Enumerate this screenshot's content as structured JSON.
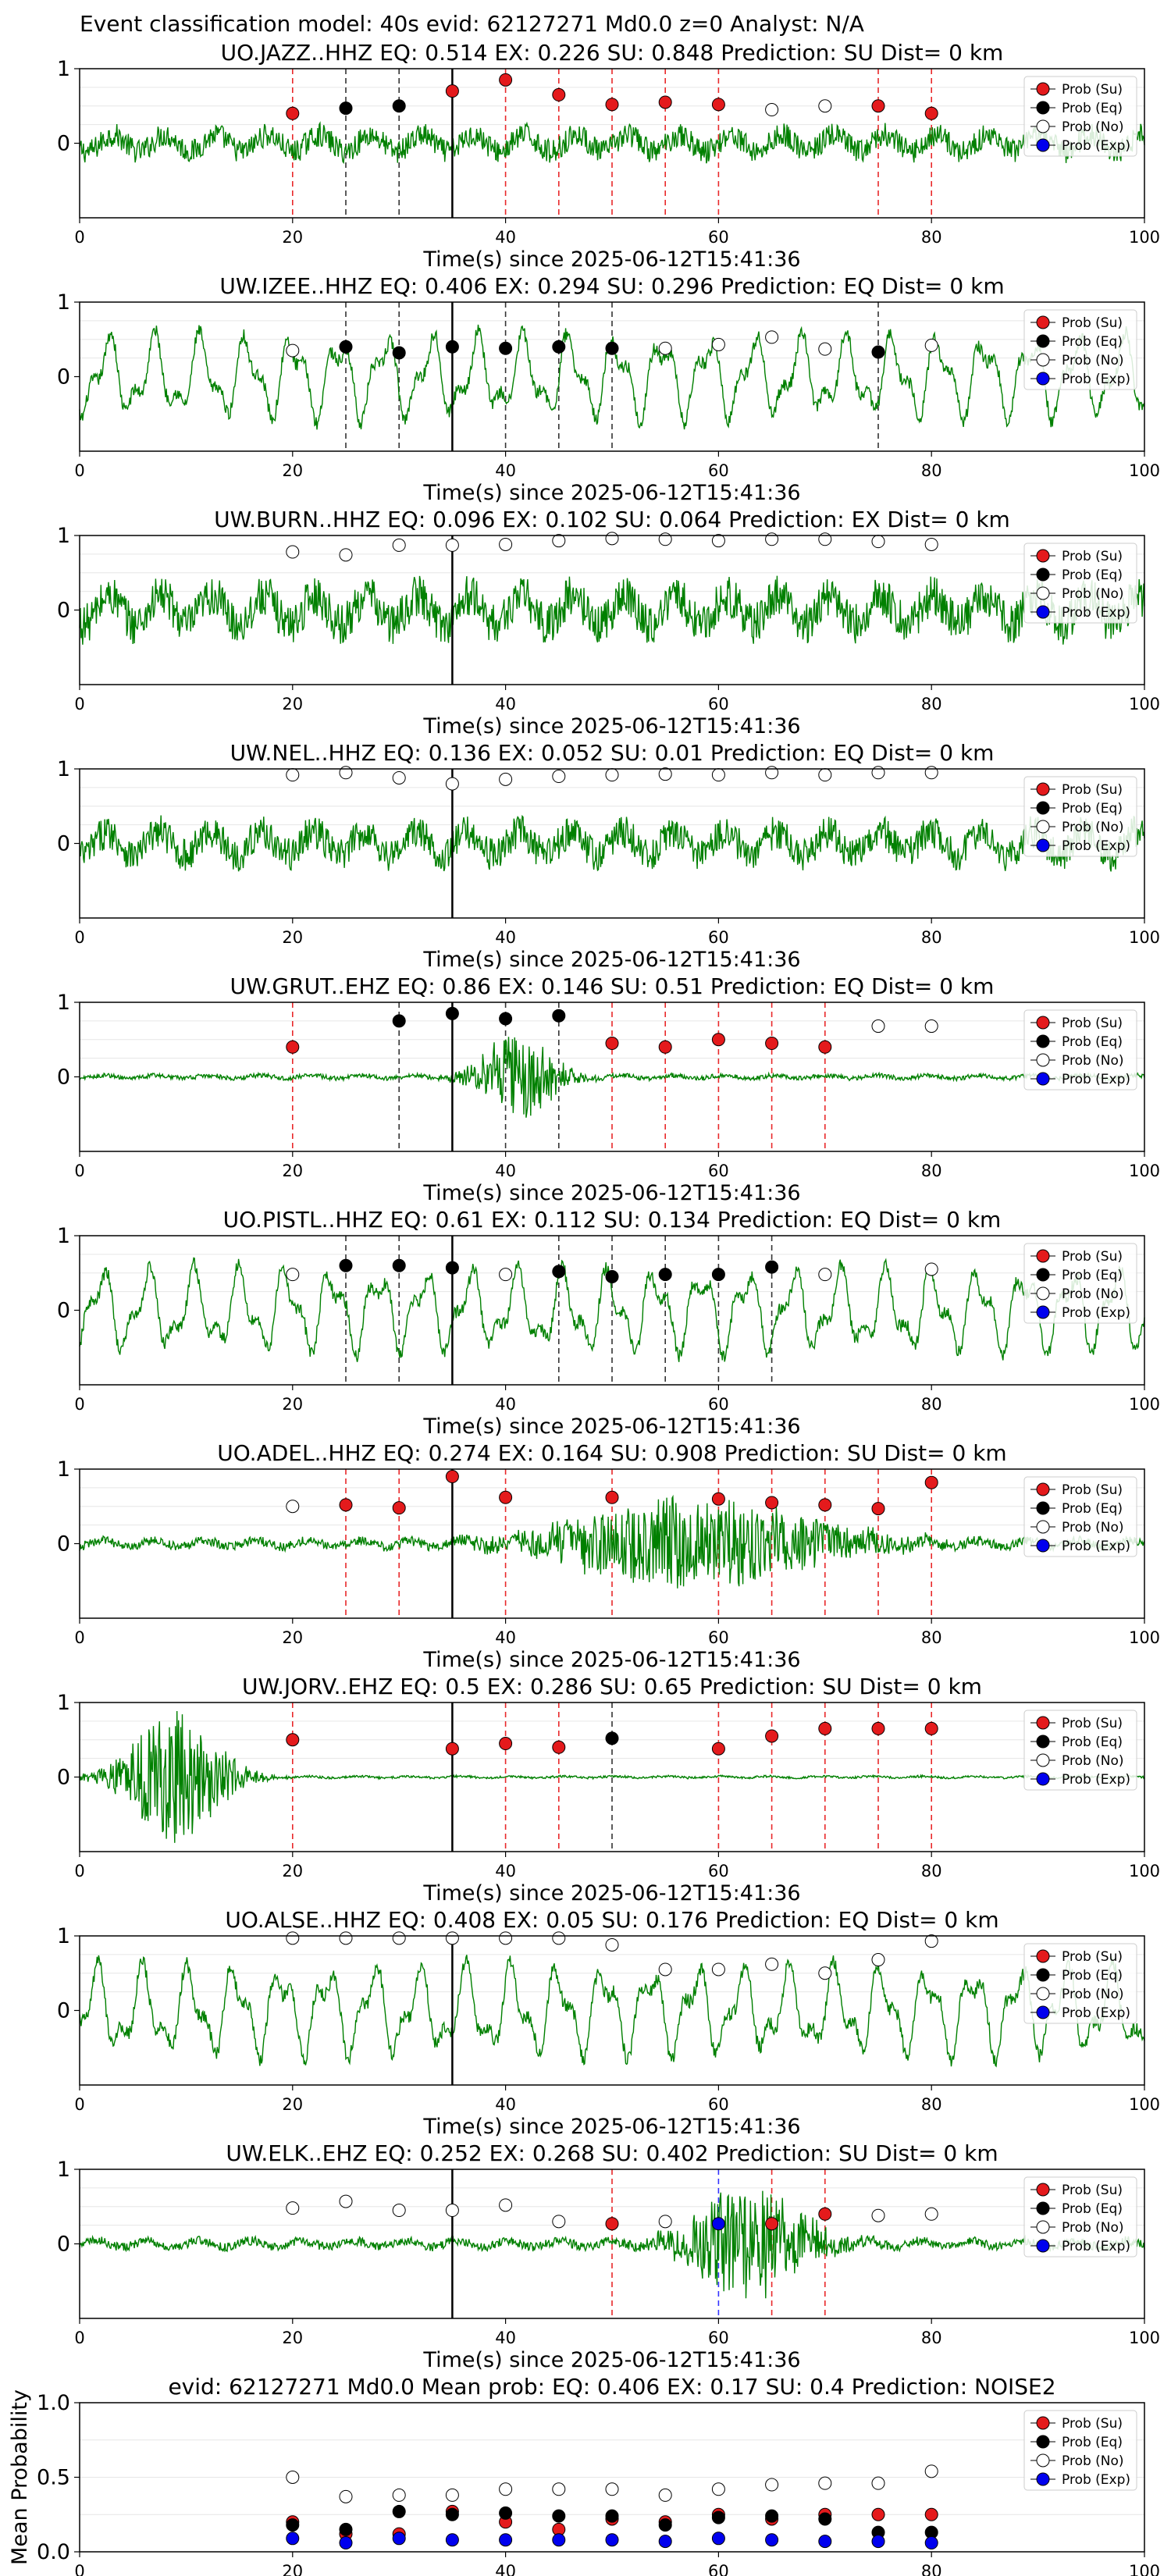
{
  "figure_title": "Event classification model: 40s evid: 62127271 Md0.0 z=0 Analyst: N/A",
  "colors": {
    "waveform": "#008000",
    "su": "#e41a1c",
    "eq": "#000000",
    "no": "#ffffff",
    "exp": "#0000ee",
    "su_line": "#e8282a",
    "eq_line": "#333333",
    "exp_line": "#3333ff",
    "origin_line": "#000000",
    "grid": "#e6e6e6"
  },
  "legend": [
    "Prob (Su)",
    "Prob (Eq)",
    "Prob (No)",
    "Prob (Exp)"
  ],
  "chart_data": [
    {
      "type": "line",
      "station": "UO.JAZZ..HHZ",
      "title": "UO.JAZZ..HHZ   EQ: 0.514  EX: 0.226  SU: 0.848   Prediction: SU    Dist= 0 km",
      "xlabel": "Time(s) since 2025-06-12T15:41:36",
      "xlim": [
        0,
        100
      ],
      "ylim": [
        -1,
        1
      ],
      "xticks": [
        "0",
        "20",
        "40",
        "60",
        "80",
        "100"
      ],
      "yticks": [
        "1",
        "0"
      ],
      "origin_time": 35,
      "waveform": {
        "amp": 0.32,
        "character": "noisy"
      },
      "classes": [
        "SU",
        "EQ",
        "EQ",
        "SU",
        "SU",
        "SU",
        "SU",
        "SU",
        "SU",
        "NO",
        "NO",
        "SU",
        "SU"
      ],
      "x": [
        20,
        25,
        30,
        35,
        40,
        45,
        50,
        55,
        60,
        65,
        70,
        75,
        80
      ],
      "y": [
        0.4,
        0.47,
        0.5,
        0.7,
        0.85,
        0.65,
        0.52,
        0.55,
        0.52,
        0.45,
        0.5,
        0.5,
        0.4
      ]
    },
    {
      "type": "line",
      "station": "UW.IZEE..HHZ",
      "title": "UW.IZEE..HHZ   EQ: 0.406  EX: 0.294  SU: 0.296   Prediction: EQ    Dist= 0 km",
      "xlabel": "Time(s) since 2025-06-12T15:41:36",
      "xlim": [
        0,
        100
      ],
      "ylim": [
        -1,
        1
      ],
      "xticks": [
        "0",
        "20",
        "40",
        "60",
        "80",
        "100"
      ],
      "yticks": [
        "1",
        "0"
      ],
      "origin_time": 35,
      "waveform": {
        "amp": 0.7,
        "character": "smooth"
      },
      "classes": [
        "NO",
        "EQ",
        "EQ",
        "EQ",
        "EQ",
        "EQ",
        "EQ",
        "NO",
        "NO",
        "NO",
        "NO",
        "EQ",
        "NO"
      ],
      "x": [
        20,
        25,
        30,
        35,
        40,
        45,
        50,
        55,
        60,
        65,
        70,
        75,
        80
      ],
      "y": [
        0.35,
        0.4,
        0.32,
        0.4,
        0.38,
        0.4,
        0.38,
        0.38,
        0.43,
        0.53,
        0.37,
        0.33,
        0.42
      ]
    },
    {
      "type": "line",
      "station": "UW.BURN..HHZ",
      "title": "UW.BURN..HHZ   EQ: 0.096  EX: 0.102  SU: 0.064   Prediction: EX    Dist= 0 km",
      "xlabel": "Time(s) since 2025-06-12T15:41:36",
      "xlim": [
        0,
        100
      ],
      "ylim": [
        -1,
        1
      ],
      "xticks": [
        "0",
        "20",
        "40",
        "60",
        "80",
        "100"
      ],
      "yticks": [
        "1",
        "0"
      ],
      "origin_time": 35,
      "waveform": {
        "amp": 0.55,
        "character": "noisy"
      },
      "classes": [
        "NO",
        "NO",
        "NO",
        "NO",
        "NO",
        "NO",
        "NO",
        "NO",
        "NO",
        "NO",
        "NO",
        "NO",
        "NO"
      ],
      "x": [
        20,
        25,
        30,
        35,
        40,
        45,
        50,
        55,
        60,
        65,
        70,
        75,
        80
      ],
      "y": [
        0.78,
        0.74,
        0.87,
        0.87,
        0.88,
        0.93,
        0.96,
        0.95,
        0.93,
        0.95,
        0.95,
        0.92,
        0.88
      ]
    },
    {
      "type": "line",
      "station": "UW.NEL..HHZ",
      "title": "UW.NEL..HHZ   EQ: 0.136  EX: 0.052  SU: 0.01   Prediction: EQ    Dist= 0 km",
      "xlabel": "Time(s) since 2025-06-12T15:41:36",
      "xlim": [
        0,
        100
      ],
      "ylim": [
        -1,
        1
      ],
      "xticks": [
        "0",
        "20",
        "40",
        "60",
        "80",
        "100"
      ],
      "yticks": [
        "1",
        "0"
      ],
      "origin_time": 35,
      "waveform": {
        "amp": 0.45,
        "character": "noisy"
      },
      "classes": [
        "NO",
        "NO",
        "NO",
        "NO",
        "NO",
        "NO",
        "NO",
        "NO",
        "NO",
        "NO",
        "NO",
        "NO",
        "NO"
      ],
      "x": [
        20,
        25,
        30,
        35,
        40,
        45,
        50,
        55,
        60,
        65,
        70,
        75,
        80
      ],
      "y": [
        0.92,
        0.95,
        0.88,
        0.8,
        0.86,
        0.9,
        0.92,
        0.93,
        0.92,
        0.95,
        0.92,
        0.95,
        0.95
      ]
    },
    {
      "type": "line",
      "station": "UW.GRUT..EHZ",
      "title": "UW.GRUT..EHZ   EQ: 0.86  EX: 0.146  SU: 0.51   Prediction: EQ    Dist= 0 km",
      "xlabel": "Time(s) since 2025-06-12T15:41:36",
      "xlim": [
        0,
        100
      ],
      "ylim": [
        -1,
        1
      ],
      "xticks": [
        "0",
        "20",
        "40",
        "60",
        "80",
        "100"
      ],
      "yticks": [
        "1",
        "0"
      ],
      "origin_time": 35,
      "waveform": {
        "amp": 0.06,
        "character": "burst",
        "burst_center": 41,
        "burst_width": 4,
        "burst_amp": 0.6
      },
      "classes": [
        "SU",
        "EQ",
        "EQ",
        "EQ",
        "EQ",
        "SU",
        "SU",
        "SU",
        "SU",
        "SU",
        "NO",
        "NO"
      ],
      "x": [
        20,
        30,
        35,
        40,
        45,
        50,
        55,
        60,
        65,
        70,
        75,
        80
      ],
      "y": [
        0.4,
        0.75,
        0.85,
        0.78,
        0.82,
        0.45,
        0.4,
        0.5,
        0.45,
        0.4,
        0.68,
        0.68
      ]
    },
    {
      "type": "line",
      "station": "UO.PISTL..HHZ",
      "title": "UO.PISTL..HHZ   EQ: 0.61  EX: 0.112  SU: 0.134   Prediction: EQ    Dist= 0 km",
      "xlabel": "Time(s) since 2025-06-12T15:41:36",
      "xlim": [
        0,
        100
      ],
      "ylim": [
        -1,
        1
      ],
      "xticks": [
        "0",
        "20",
        "40",
        "60",
        "80",
        "100"
      ],
      "yticks": [
        "1",
        "0"
      ],
      "origin_time": 35,
      "waveform": {
        "amp": 0.7,
        "character": "smooth"
      },
      "classes": [
        "NO",
        "EQ",
        "EQ",
        "EQ",
        "NO",
        "EQ",
        "EQ",
        "EQ",
        "EQ",
        "EQ",
        "NO",
        "NO"
      ],
      "x": [
        20,
        25,
        30,
        35,
        40,
        45,
        50,
        55,
        60,
        65,
        70,
        80
      ],
      "y": [
        0.48,
        0.6,
        0.6,
        0.57,
        0.48,
        0.52,
        0.45,
        0.48,
        0.48,
        0.58,
        0.48,
        0.55
      ]
    },
    {
      "type": "line",
      "station": "UO.ADEL..HHZ",
      "title": "UO.ADEL..HHZ   EQ: 0.274  EX: 0.164  SU: 0.908   Prediction: SU    Dist= 0 km",
      "xlabel": "Time(s) since 2025-06-12T15:41:36",
      "xlim": [
        0,
        100
      ],
      "ylim": [
        -1,
        1
      ],
      "xticks": [
        "0",
        "20",
        "40",
        "60",
        "80",
        "100"
      ],
      "yticks": [
        "1",
        "0"
      ],
      "origin_time": 35,
      "waveform": {
        "amp": 0.12,
        "character": "burst",
        "burst_center": 58,
        "burst_width": 14,
        "burst_amp": 0.6
      },
      "classes": [
        "NO",
        "SU",
        "SU",
        "SU",
        "SU",
        "SU",
        "SU",
        "SU",
        "SU",
        "SU",
        "SU"
      ],
      "x": [
        20,
        25,
        30,
        35,
        40,
        50,
        60,
        65,
        70,
        75,
        80
      ],
      "y": [
        0.5,
        0.52,
        0.48,
        0.9,
        0.62,
        0.62,
        0.6,
        0.55,
        0.52,
        0.47,
        0.82
      ]
    },
    {
      "type": "line",
      "station": "UW.JORV..EHZ",
      "title": "UW.JORV..EHZ   EQ: 0.5  EX: 0.286  SU: 0.65   Prediction: SU    Dist= 0 km",
      "xlabel": "Time(s) since 2025-06-12T15:41:36",
      "xlim": [
        0,
        100
      ],
      "ylim": [
        -1,
        1
      ],
      "xticks": [
        "0",
        "20",
        "40",
        "60",
        "80",
        "100"
      ],
      "yticks": [
        "1",
        "0"
      ],
      "origin_time": 35,
      "waveform": {
        "amp": 0.03,
        "character": "burst",
        "burst_center": 9,
        "burst_width": 5,
        "burst_amp": 0.9
      },
      "classes": [
        "SU",
        "SU",
        "SU",
        "SU",
        "EQ",
        "SU",
        "SU",
        "SU",
        "SU",
        "SU"
      ],
      "x": [
        20,
        35,
        40,
        45,
        50,
        60,
        65,
        70,
        75,
        80
      ],
      "y": [
        0.5,
        0.38,
        0.45,
        0.4,
        0.52,
        0.38,
        0.55,
        0.65,
        0.65,
        0.65
      ]
    },
    {
      "type": "line",
      "station": "UO.ALSE..HHZ",
      "title": "UO.ALSE..HHZ   EQ: 0.408  EX: 0.05  SU: 0.176   Prediction: EQ    Dist= 0 km",
      "xlabel": "Time(s) since 2025-06-12T15:41:36",
      "xlim": [
        0,
        100
      ],
      "ylim": [
        -1,
        1
      ],
      "xticks": [
        "0",
        "20",
        "40",
        "60",
        "80",
        "100"
      ],
      "yticks": [
        "1",
        "0"
      ],
      "origin_time": 35,
      "waveform": {
        "amp": 0.75,
        "character": "smooth"
      },
      "classes": [
        "NO",
        "NO",
        "NO",
        "NO",
        "NO",
        "NO",
        "NO",
        "NO",
        "NO",
        "NO",
        "NO",
        "NO",
        "NO"
      ],
      "x": [
        20,
        25,
        30,
        35,
        40,
        45,
        50,
        55,
        60,
        65,
        70,
        75,
        80
      ],
      "y": [
        0.97,
        0.97,
        0.97,
        0.97,
        0.97,
        0.97,
        0.88,
        0.55,
        0.55,
        0.62,
        0.5,
        0.68,
        0.93
      ]
    },
    {
      "type": "line",
      "station": "UW.ELK..EHZ",
      "title": "UW.ELK..EHZ   EQ: 0.252  EX: 0.268  SU: 0.402   Prediction: SU    Dist= 0 km",
      "xlabel": "Time(s) since 2025-06-12T15:41:36",
      "xlim": [
        0,
        100
      ],
      "ylim": [
        -1,
        1
      ],
      "xticks": [
        "0",
        "20",
        "40",
        "60",
        "80",
        "100"
      ],
      "yticks": [
        "1",
        "0"
      ],
      "origin_time": 35,
      "waveform": {
        "amp": 0.12,
        "character": "burst",
        "burst_center": 63,
        "burst_width": 6,
        "burst_amp": 0.8
      },
      "classes": [
        "NO",
        "NO",
        "NO",
        "NO",
        "NO",
        "NO",
        "SU",
        "NO",
        "EXP",
        "SU",
        "SU",
        "NO",
        "NO"
      ],
      "x": [
        20,
        25,
        30,
        35,
        40,
        45,
        50,
        55,
        60,
        65,
        70,
        75,
        80
      ],
      "y": [
        0.48,
        0.57,
        0.45,
        0.45,
        0.52,
        0.3,
        0.27,
        0.3,
        0.27,
        0.27,
        0.4,
        0.38,
        0.4
      ]
    },
    {
      "type": "scatter",
      "title": "evid: 62127271  Md0.0   Mean prob:   EQ: 0.406  EX: 0.17  SU: 0.4   Prediction: NOISE2",
      "ylabel": "Mean Probability",
      "xlim": [
        0,
        100
      ],
      "ylim": [
        0,
        1
      ],
      "xticks": [
        "0",
        "20",
        "40",
        "60",
        "80",
        "100"
      ],
      "yticks": [
        "0.0",
        "0.5",
        "1.0"
      ],
      "x": [
        20,
        25,
        30,
        35,
        40,
        45,
        50,
        55,
        60,
        65,
        70,
        75,
        80
      ],
      "series": [
        {
          "name": "Prob (Su)",
          "key": "su",
          "values": [
            0.2,
            0.12,
            0.12,
            0.27,
            0.2,
            0.15,
            0.22,
            0.2,
            0.25,
            0.22,
            0.25,
            0.25,
            0.25
          ]
        },
        {
          "name": "Prob (Eq)",
          "key": "eq",
          "values": [
            0.18,
            0.15,
            0.27,
            0.25,
            0.26,
            0.24,
            0.24,
            0.18,
            0.23,
            0.24,
            0.22,
            0.13,
            0.13
          ]
        },
        {
          "name": "Prob (No)",
          "key": "no",
          "values": [
            0.5,
            0.37,
            0.38,
            0.38,
            0.42,
            0.42,
            0.42,
            0.38,
            0.42,
            0.45,
            0.46,
            0.46,
            0.54
          ]
        },
        {
          "name": "Prob (Exp)",
          "key": "exp",
          "values": [
            0.09,
            0.06,
            0.09,
            0.08,
            0.08,
            0.08,
            0.08,
            0.07,
            0.09,
            0.08,
            0.07,
            0.07,
            0.06
          ]
        }
      ]
    }
  ]
}
